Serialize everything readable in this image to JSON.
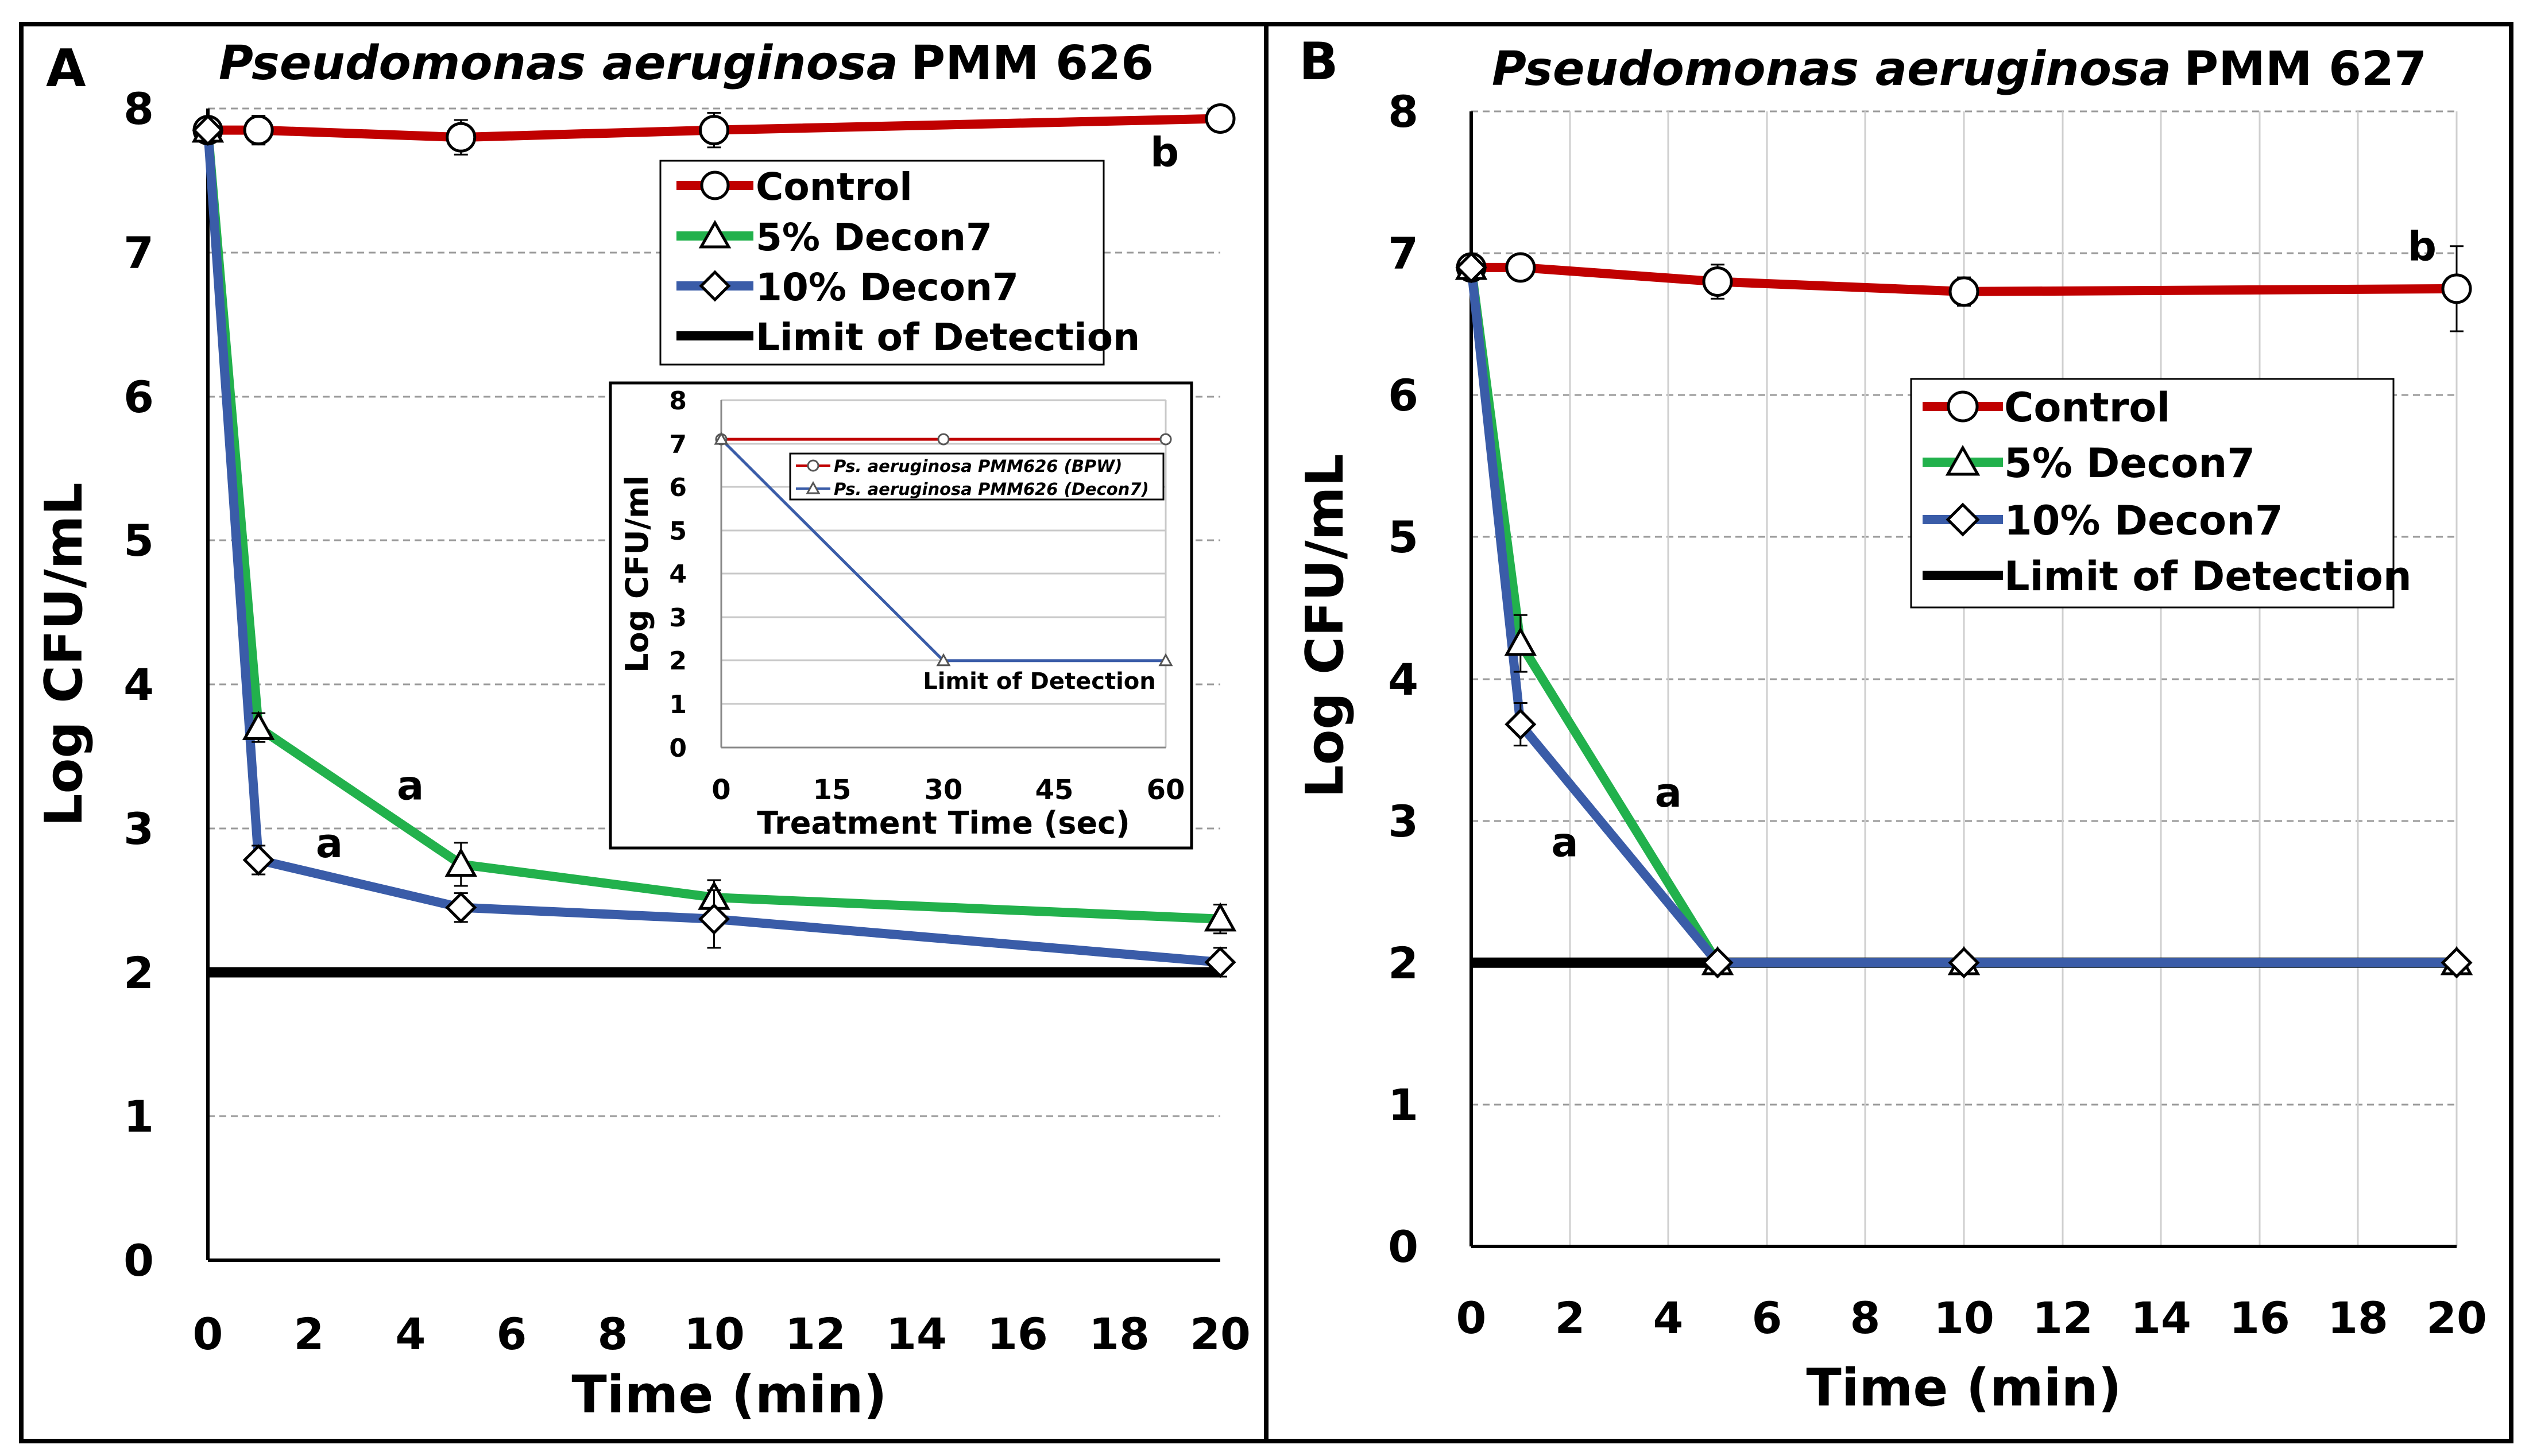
{
  "colors": {
    "control": "#c00000",
    "decon5": "#22b14c",
    "decon10": "#3a5ca8",
    "lod": "#000000",
    "grid": "#9a9a9a",
    "inset_grid": "#c8c8c8",
    "inset_lod_note": "#000000"
  },
  "chart_data": [
    {
      "id": "panel-a",
      "type": "line",
      "panel_label": "A",
      "title_italic": "Pseudomonas aeruginosa",
      "title_strain": "PMM 626",
      "xlabel": "Time (min)",
      "ylabel": "Log CFU/mL",
      "xlim": [
        0,
        20
      ],
      "ylim": [
        0,
        8
      ],
      "xticks": [
        0,
        2,
        4,
        6,
        8,
        10,
        12,
        14,
        16,
        18,
        20
      ],
      "yticks": [
        0,
        1,
        2,
        3,
        4,
        5,
        6,
        7,
        8
      ],
      "grid": true,
      "legend_placement": "top-right",
      "series": [
        {
          "name": "Control",
          "color": "control",
          "marker": "circle",
          "x": [
            0,
            1,
            5,
            10,
            20
          ],
          "y": [
            7.85,
            7.85,
            7.8,
            7.85,
            7.93
          ],
          "err": [
            0.05,
            0.1,
            0.12,
            0.12,
            0.05
          ]
        },
        {
          "name": "5% Decon7",
          "color": "decon5",
          "marker": "triangle",
          "x": [
            0,
            1,
            5,
            10,
            20
          ],
          "y": [
            7.85,
            3.7,
            2.75,
            2.52,
            2.37
          ],
          "err": [
            0.05,
            0.1,
            0.15,
            0.12,
            0.1
          ]
        },
        {
          "name": "10% Decon7",
          "color": "decon10",
          "marker": "diamond",
          "x": [
            0,
            1,
            5,
            10,
            20
          ],
          "y": [
            7.85,
            2.78,
            2.45,
            2.37,
            2.07
          ],
          "err": [
            0.05,
            0.1,
            0.1,
            0.2,
            0.1
          ]
        },
        {
          "name": "Limit of Detection",
          "color": "lod",
          "marker": "none",
          "x": [
            0,
            20
          ],
          "y": [
            2,
            2
          ]
        }
      ],
      "annotations": [
        {
          "text": "a",
          "x": 4.0,
          "y": 3.2
        },
        {
          "text": "a",
          "x": 2.4,
          "y": 2.8
        },
        {
          "text": "b",
          "x": 18.9,
          "y": 7.6
        }
      ],
      "inset": {
        "type": "line",
        "xlabel": "Treatment Time (sec)",
        "ylabel": "Log CFU/ml",
        "xlim": [
          0,
          60
        ],
        "ylim": [
          0,
          8
        ],
        "xticks": [
          0,
          15,
          30,
          45,
          60
        ],
        "yticks": [
          0,
          1,
          2,
          3,
          4,
          5,
          6,
          7,
          8
        ],
        "series": [
          {
            "name": "Ps. aeruginosa PMM626 (BPW)",
            "color": "control",
            "marker": "circle",
            "x": [
              0,
              30,
              60
            ],
            "y": [
              7.1,
              7.1,
              7.1
            ]
          },
          {
            "name": "Ps. aeruginosa PMM626 (Decon7)",
            "color": "decon10",
            "marker": "triangle",
            "x": [
              0,
              30,
              60
            ],
            "y": [
              7.1,
              2.0,
              2.0
            ]
          }
        ],
        "annotation": "Limit of Detection"
      }
    },
    {
      "id": "panel-b",
      "type": "line",
      "panel_label": "B",
      "title_italic": "Pseudomonas aeruginosa",
      "title_strain": "PMM 627",
      "xlabel": "Time (min)",
      "ylabel": "Log CFU/mL",
      "xlim": [
        0,
        20
      ],
      "ylim": [
        0,
        8
      ],
      "xticks": [
        0,
        2,
        4,
        6,
        8,
        10,
        12,
        14,
        16,
        18,
        20
      ],
      "yticks": [
        0,
        1,
        2,
        3,
        4,
        5,
        6,
        7,
        8
      ],
      "grid": true,
      "legend_placement": "upper-right",
      "series": [
        {
          "name": "Control",
          "color": "control",
          "marker": "circle",
          "x": [
            0,
            1,
            5,
            10,
            20
          ],
          "y": [
            6.9,
            6.9,
            6.8,
            6.73,
            6.75
          ],
          "err": [
            0.05,
            0.05,
            0.12,
            0.1,
            0.3
          ]
        },
        {
          "name": "5% Decon7",
          "color": "decon5",
          "marker": "triangle",
          "x": [
            0,
            1,
            5,
            10,
            20
          ],
          "y": [
            6.9,
            4.25,
            2.0,
            2.0,
            2.0
          ],
          "err": [
            0.05,
            0.2,
            0,
            0,
            0
          ]
        },
        {
          "name": "10% Decon7",
          "color": "decon10",
          "marker": "diamond",
          "x": [
            0,
            1,
            5,
            10,
            20
          ],
          "y": [
            6.9,
            3.68,
            2.0,
            2.0,
            2.0
          ],
          "err": [
            0.05,
            0.15,
            0,
            0,
            0
          ]
        },
        {
          "name": "Limit of Detection",
          "color": "lod",
          "marker": "none",
          "x": [
            0,
            20
          ],
          "y": [
            2,
            2
          ]
        }
      ],
      "annotations": [
        {
          "text": "a",
          "x": 4.0,
          "y": 3.1
        },
        {
          "text": "a",
          "x": 1.9,
          "y": 2.75
        },
        {
          "text": "b",
          "x": 19.3,
          "y": 6.95
        }
      ]
    }
  ]
}
